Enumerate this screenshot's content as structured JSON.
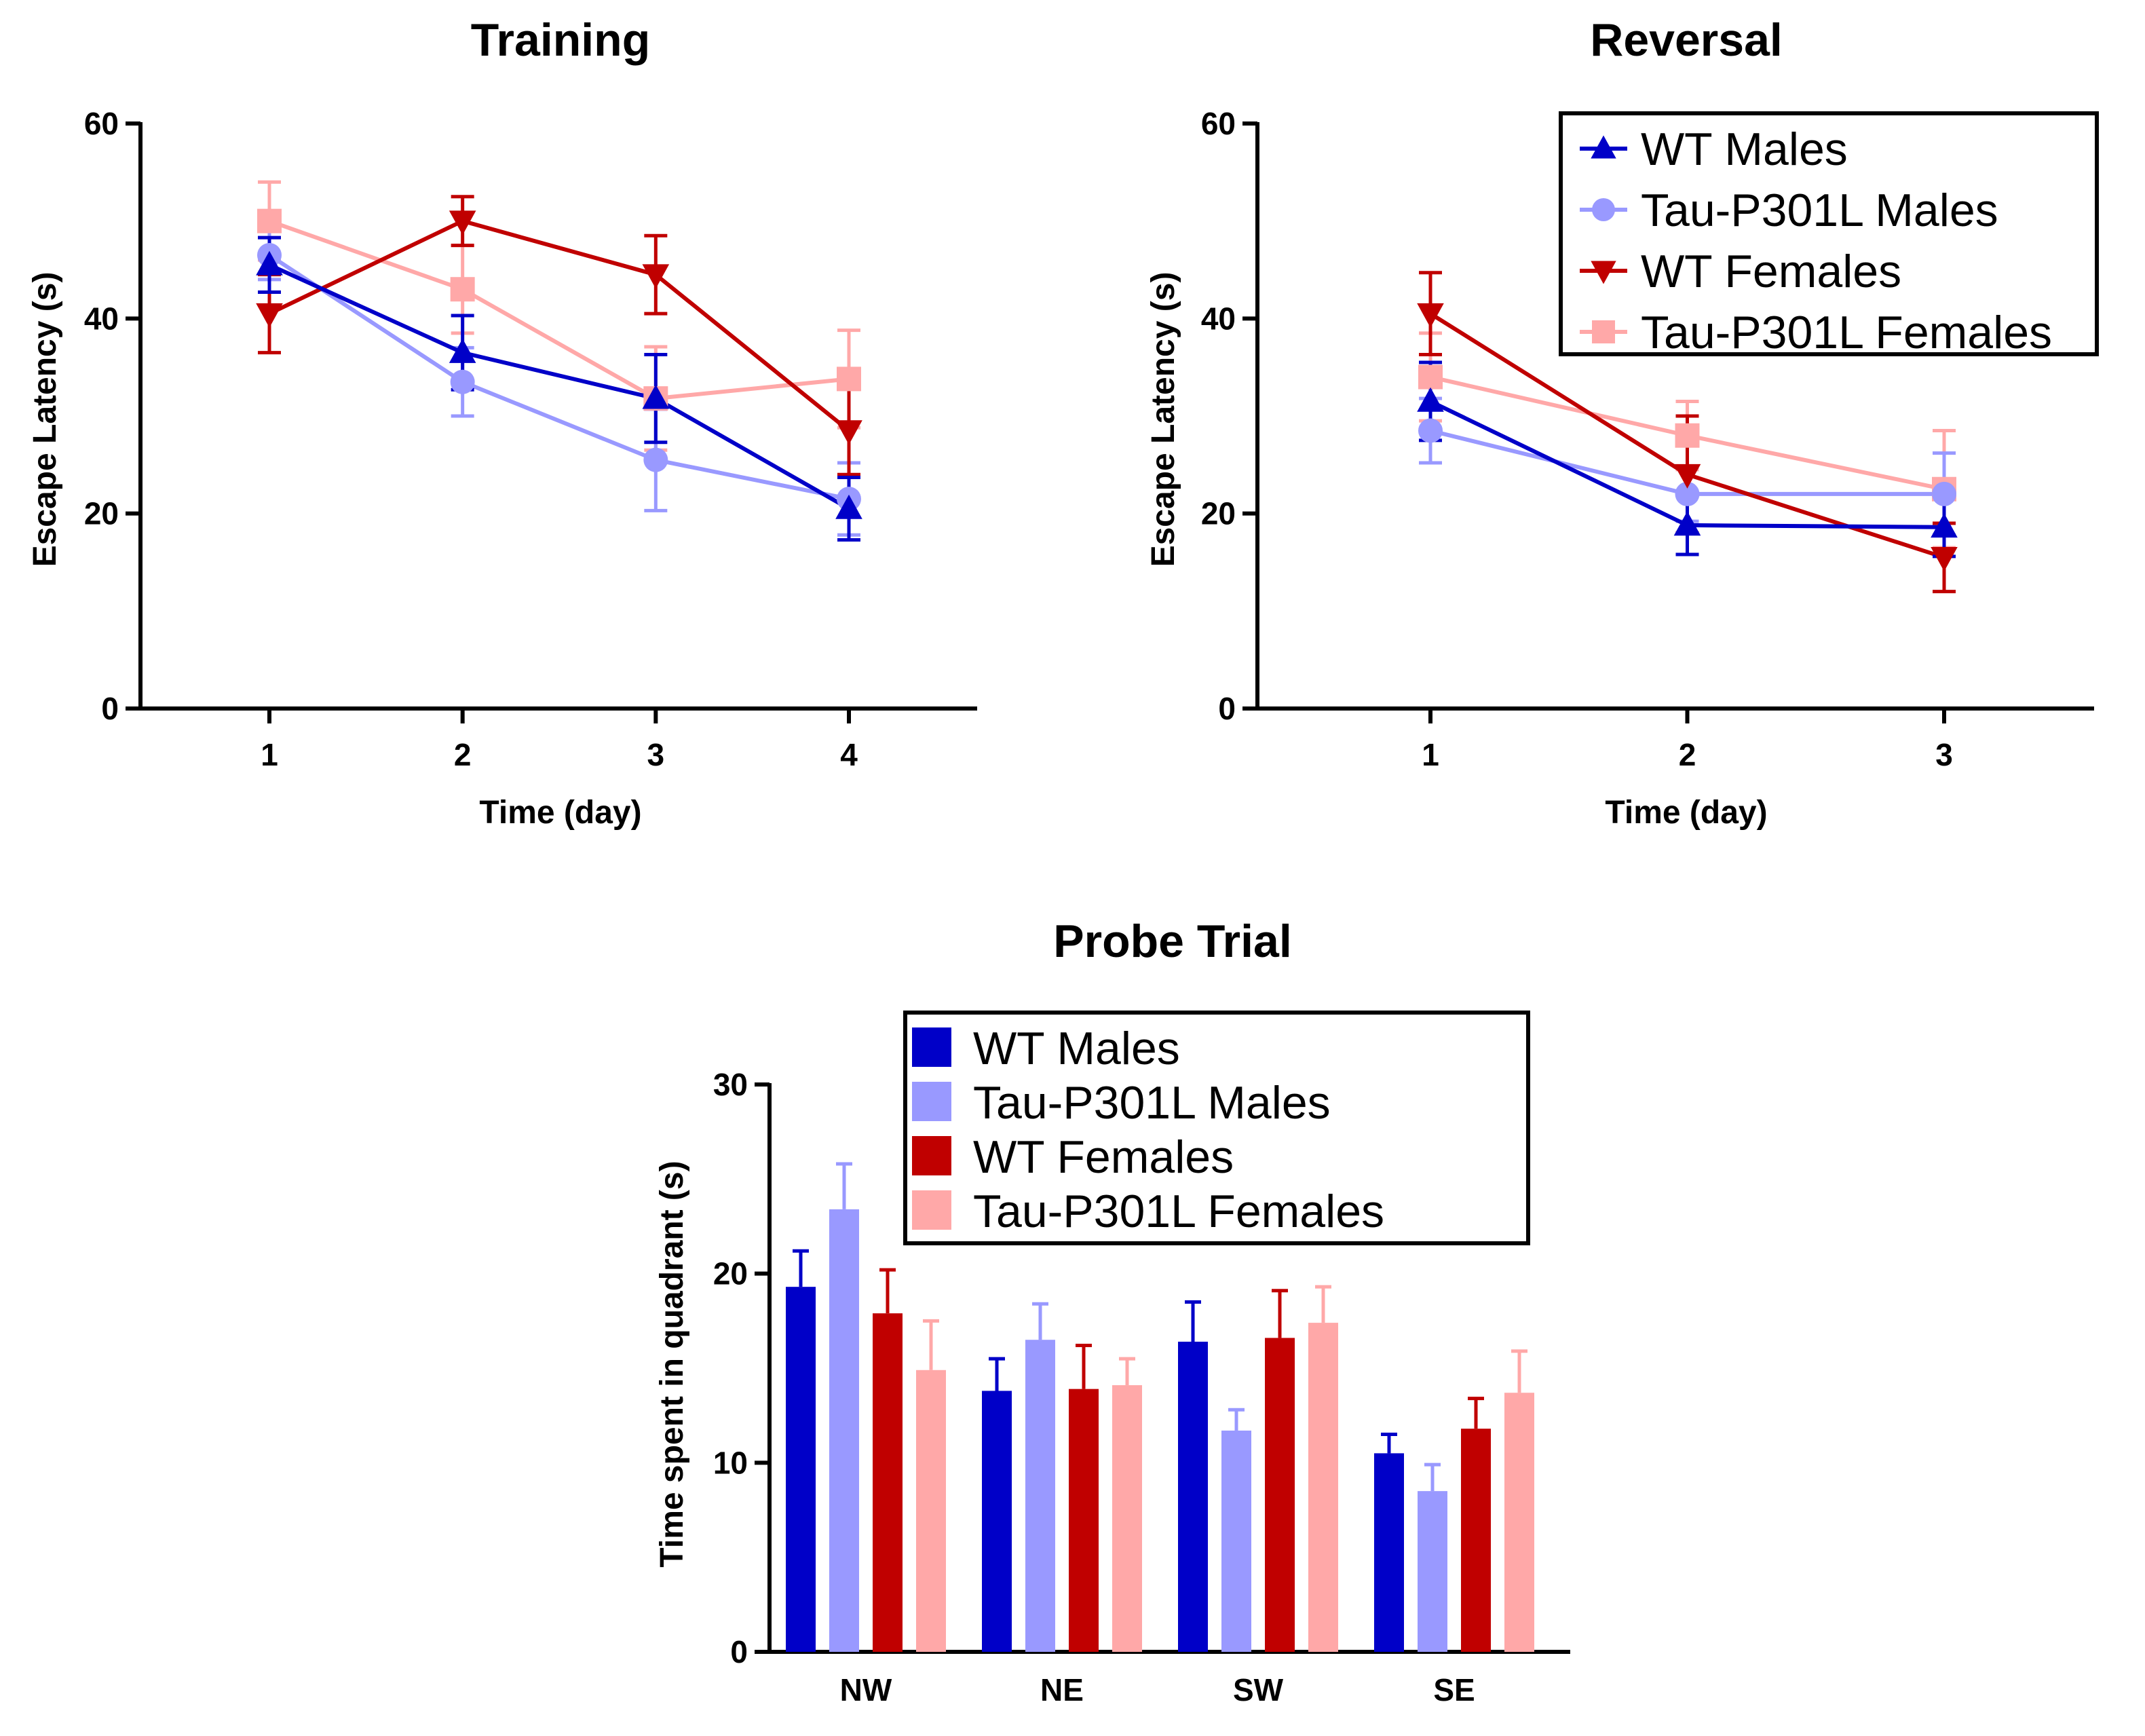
{
  "colors": {
    "wt_males": "#0000c8",
    "tau_males": "#9999ff",
    "wt_females": "#c00000",
    "tau_females": "#ffa8a8"
  },
  "chart_data": [
    {
      "id": "training",
      "type": "line",
      "title": "Training",
      "xlabel": "Time (day)",
      "ylabel": "Escape Latency (s)",
      "x": [
        1,
        2,
        3,
        4
      ],
      "xticks": [
        "1",
        "2",
        "3",
        "4"
      ],
      "yticks": [
        "0",
        "20",
        "40",
        "60"
      ],
      "ylim": [
        0,
        60
      ],
      "series": [
        {
          "name": "WT Males",
          "marker": "triangle-up",
          "values": [
            45.5,
            36.5,
            31.8,
            20.5
          ],
          "errors": [
            2.8,
            3.8,
            4.5,
            3.2
          ]
        },
        {
          "name": "Tau-P301L Males",
          "marker": "circle",
          "values": [
            46.5,
            33.5,
            25.5,
            21.5
          ],
          "errors": [
            2.5,
            3.5,
            5.2,
            3.7
          ]
        },
        {
          "name": "WT Females",
          "marker": "triangle-down",
          "values": [
            40.5,
            50.0,
            44.5,
            28.5
          ],
          "errors": [
            4.0,
            2.5,
            4.0,
            4.5
          ]
        },
        {
          "name": "Tau-P301L Females",
          "marker": "square",
          "values": [
            50.0,
            43.0,
            31.8,
            33.8
          ],
          "errors": [
            4.0,
            4.5,
            5.3,
            5.0
          ]
        }
      ]
    },
    {
      "id": "reversal",
      "type": "line",
      "title": "Reversal",
      "xlabel": "Time (day)",
      "ylabel": "Escape Latency (s)",
      "x": [
        1,
        2,
        3
      ],
      "xticks": [
        "1",
        "2",
        "3"
      ],
      "yticks": [
        "0",
        "20",
        "40",
        "60"
      ],
      "ylim": [
        0,
        60
      ],
      "legend_position": "top-right",
      "legend": [
        "WT Males",
        "Tau-P301L Males",
        "WT Females",
        "Tau-P301L Females"
      ],
      "series": [
        {
          "name": "WT Males",
          "marker": "triangle-up",
          "values": [
            31.5,
            18.8,
            18.6
          ],
          "errors": [
            4.0,
            3.0,
            3.0
          ]
        },
        {
          "name": "Tau-P301L Males",
          "marker": "circle",
          "values": [
            28.5,
            22.0,
            22.0
          ],
          "errors": [
            3.3,
            2.8,
            4.2
          ]
        },
        {
          "name": "WT Females",
          "marker": "triangle-down",
          "values": [
            40.5,
            24.0,
            15.5
          ],
          "errors": [
            4.2,
            6.0,
            3.5
          ]
        },
        {
          "name": "Tau-P301L Females",
          "marker": "square",
          "values": [
            34.0,
            28.0,
            22.5
          ],
          "errors": [
            4.5,
            3.5,
            6.0
          ]
        }
      ]
    },
    {
      "id": "probe",
      "type": "bar",
      "title": "Probe Trial",
      "xlabel": "",
      "ylabel": "Time spent in quadrant (s)",
      "categories": [
        "NW",
        "NE",
        "SW",
        "SE"
      ],
      "yticks": [
        "0",
        "10",
        "20",
        "30"
      ],
      "ylim": [
        0,
        30
      ],
      "legend_position": "top",
      "legend": [
        "WT Males",
        "Tau-P301L Males",
        "WT Females",
        "Tau-P301L Females"
      ],
      "series": [
        {
          "name": "WT Males",
          "values": [
            19.3,
            13.8,
            16.4,
            10.5
          ],
          "errors": [
            1.9,
            1.7,
            2.1,
            1.0
          ]
        },
        {
          "name": "Tau-P301L Males",
          "values": [
            23.4,
            16.5,
            11.7,
            8.5
          ],
          "errors": [
            2.4,
            1.9,
            1.1,
            1.4
          ]
        },
        {
          "name": "WT Females",
          "values": [
            17.9,
            13.9,
            16.6,
            11.8
          ],
          "errors": [
            2.3,
            2.3,
            2.5,
            1.6
          ]
        },
        {
          "name": "Tau-P301L Females",
          "values": [
            14.9,
            14.1,
            17.4,
            13.7
          ],
          "errors": [
            2.6,
            1.4,
            1.9,
            2.2
          ]
        }
      ]
    }
  ]
}
